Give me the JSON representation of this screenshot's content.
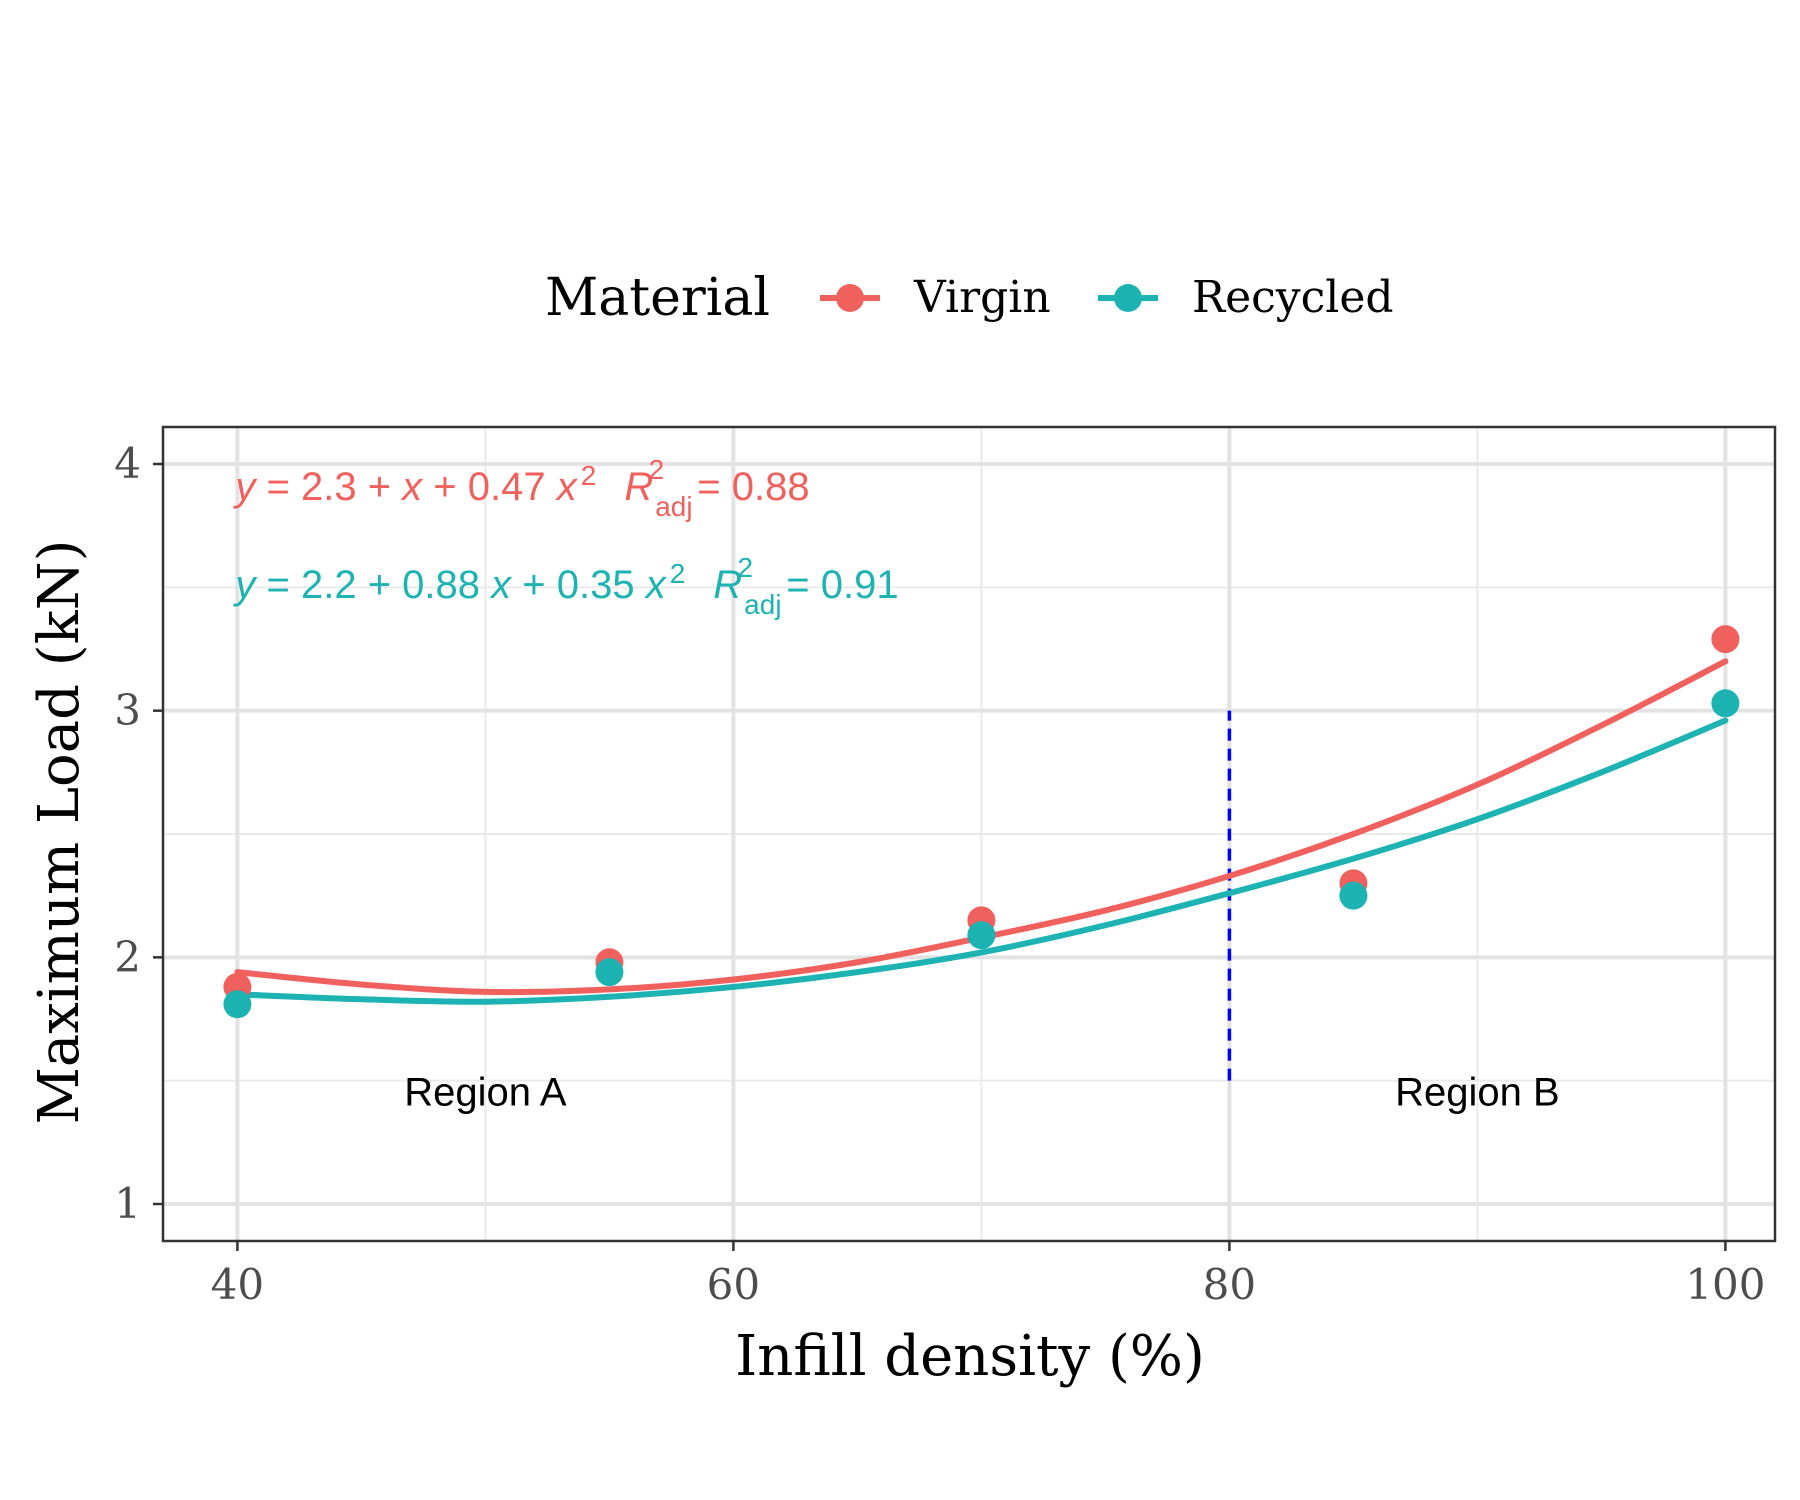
{
  "chart_data": {
    "type": "scatter",
    "xlabel": "Infill density (%)",
    "ylabel": "Maximum Load (kN)",
    "xlim": [
      37,
      102
    ],
    "ylim": [
      0.85,
      4.15
    ],
    "x_ticks": [
      40,
      60,
      80,
      100
    ],
    "x_tick_labels": [
      "40",
      "60",
      "80",
      "100"
    ],
    "y_ticks": [
      1,
      2,
      3,
      4
    ],
    "y_tick_labels": [
      "1",
      "2",
      "3",
      "4"
    ],
    "x_minor_gridlines": [
      50,
      70,
      90
    ],
    "y_minor_gridlines": [
      1.5,
      2.5,
      3.5
    ],
    "grid": true,
    "legend": {
      "title": "Material",
      "position": "top",
      "entries": [
        "Virgin",
        "Recycled"
      ]
    },
    "series": [
      {
        "name": "Virgin",
        "color": "#F0615E",
        "x": [
          40,
          55,
          70,
          85,
          100
        ],
        "y": [
          1.88,
          1.98,
          2.15,
          2.3,
          3.29
        ],
        "fit_curve_x": [
          40,
          45,
          50,
          55,
          60,
          65,
          70,
          75,
          80,
          85,
          90,
          95,
          100
        ],
        "fit_curve_y": [
          1.94,
          1.89,
          1.86,
          1.87,
          1.91,
          1.98,
          2.08,
          2.19,
          2.33,
          2.5,
          2.7,
          2.94,
          3.2
        ],
        "equation": {
          "lhs": "y",
          "rhs_1": " = 2.3 + ",
          "x_term": " x",
          "rhs_2": " + 0.47 ",
          "x2_base": "x",
          "exp": "2",
          "r_base": "R",
          "r_sub": "adj",
          "r_sup": "2",
          "r_val": " = 0.88"
        }
      },
      {
        "name": "Recycled",
        "color": "#1DB3B3",
        "x": [
          40,
          55,
          70,
          85,
          100
        ],
        "y": [
          1.81,
          1.94,
          2.09,
          2.25,
          3.03
        ],
        "fit_curve_x": [
          40,
          45,
          50,
          55,
          60,
          65,
          70,
          75,
          80,
          85,
          90,
          95,
          100
        ],
        "fit_curve_y": [
          1.85,
          1.83,
          1.82,
          1.84,
          1.88,
          1.94,
          2.02,
          2.13,
          2.26,
          2.4,
          2.56,
          2.75,
          2.96
        ],
        "equation": {
          "lhs": "y",
          "rhs_1": " = 2.2 + 0.88 ",
          "x_term": "x",
          "rhs_2": " + 0.35 ",
          "x2_base": "x",
          "exp": "2",
          "r_base": "R",
          "r_sub": "adj",
          "r_sup": "2",
          "r_val": " = 0.91"
        }
      }
    ],
    "reference_line": {
      "x": 80,
      "y_from": 1.5,
      "y_to": 3.0,
      "color": "#0000FF",
      "style": "dashed"
    },
    "annotations": [
      {
        "text": "Region A",
        "x": 50,
        "y": 1.4
      },
      {
        "text": "Region B",
        "x": 90,
        "y": 1.4
      }
    ]
  }
}
